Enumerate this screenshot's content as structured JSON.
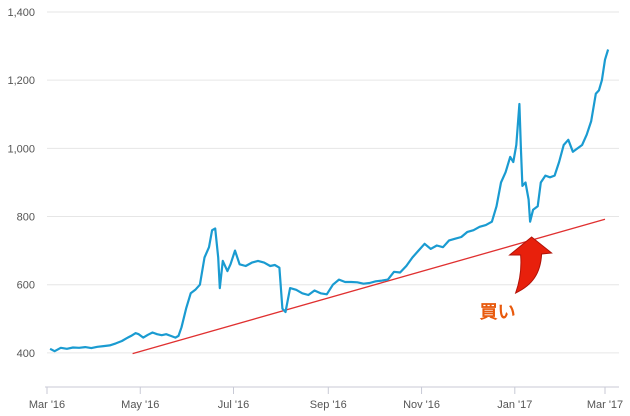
{
  "chart_data": {
    "type": "line",
    "grid": "horizontal",
    "ylim": [
      300,
      1400
    ],
    "y_ticks": [
      {
        "value": 400,
        "label": "400"
      },
      {
        "value": 600,
        "label": "600"
      },
      {
        "value": 800,
        "label": "800"
      },
      {
        "value": 1000,
        "label": "1,000"
      },
      {
        "value": 1200,
        "label": "1,200"
      },
      {
        "value": 1400,
        "label": "1,400"
      }
    ],
    "x_ticks": [
      {
        "date": "2016-03-01",
        "label": "Mar '16"
      },
      {
        "date": "2016-05-01",
        "label": "May '16"
      },
      {
        "date": "2016-07-01",
        "label": "Jul '16"
      },
      {
        "date": "2016-09-01",
        "label": "Sep '16"
      },
      {
        "date": "2016-11-01",
        "label": "Nov '16"
      },
      {
        "date": "2017-01-01",
        "label": "Jan '17"
      },
      {
        "date": "2017-03-01",
        "label": "Mar '17"
      }
    ],
    "series": [
      {
        "color": "#1a9bd1",
        "points": [
          [
            "2016-03-03",
            412
          ],
          [
            "2016-03-06",
            405
          ],
          [
            "2016-03-10",
            415
          ],
          [
            "2016-03-14",
            412
          ],
          [
            "2016-03-18",
            416
          ],
          [
            "2016-03-22",
            415
          ],
          [
            "2016-03-26",
            417
          ],
          [
            "2016-03-30",
            414
          ],
          [
            "2016-04-03",
            418
          ],
          [
            "2016-04-07",
            420
          ],
          [
            "2016-04-11",
            422
          ],
          [
            "2016-04-15",
            428
          ],
          [
            "2016-04-19",
            435
          ],
          [
            "2016-04-22",
            443
          ],
          [
            "2016-04-25",
            450
          ],
          [
            "2016-04-28",
            458
          ],
          [
            "2016-04-30",
            455
          ],
          [
            "2016-05-03",
            445
          ],
          [
            "2016-05-06",
            453
          ],
          [
            "2016-05-09",
            460
          ],
          [
            "2016-05-12",
            455
          ],
          [
            "2016-05-15",
            452
          ],
          [
            "2016-05-18",
            455
          ],
          [
            "2016-05-21",
            450
          ],
          [
            "2016-05-24",
            445
          ],
          [
            "2016-05-26",
            450
          ],
          [
            "2016-05-28",
            475
          ],
          [
            "2016-05-31",
            530
          ],
          [
            "2016-06-03",
            575
          ],
          [
            "2016-06-06",
            585
          ],
          [
            "2016-06-09",
            600
          ],
          [
            "2016-06-12",
            680
          ],
          [
            "2016-06-15",
            710
          ],
          [
            "2016-06-17",
            760
          ],
          [
            "2016-06-19",
            765
          ],
          [
            "2016-06-21",
            680
          ],
          [
            "2016-06-22",
            590
          ],
          [
            "2016-06-24",
            670
          ],
          [
            "2016-06-27",
            640
          ],
          [
            "2016-06-29",
            660
          ],
          [
            "2016-07-02",
            700
          ],
          [
            "2016-07-05",
            660
          ],
          [
            "2016-07-09",
            655
          ],
          [
            "2016-07-13",
            665
          ],
          [
            "2016-07-17",
            670
          ],
          [
            "2016-07-21",
            665
          ],
          [
            "2016-07-25",
            655
          ],
          [
            "2016-07-28",
            658
          ],
          [
            "2016-07-31",
            650
          ],
          [
            "2016-08-02",
            530
          ],
          [
            "2016-08-04",
            520
          ],
          [
            "2016-08-07",
            590
          ],
          [
            "2016-08-11",
            585
          ],
          [
            "2016-08-15",
            575
          ],
          [
            "2016-08-19",
            570
          ],
          [
            "2016-08-23",
            583
          ],
          [
            "2016-08-27",
            575
          ],
          [
            "2016-08-31",
            572
          ],
          [
            "2016-09-04",
            600
          ],
          [
            "2016-09-08",
            615
          ],
          [
            "2016-09-12",
            608
          ],
          [
            "2016-09-16",
            608
          ],
          [
            "2016-09-20",
            607
          ],
          [
            "2016-09-24",
            603
          ],
          [
            "2016-09-28",
            605
          ],
          [
            "2016-10-02",
            610
          ],
          [
            "2016-10-06",
            612
          ],
          [
            "2016-10-10",
            615
          ],
          [
            "2016-10-14",
            638
          ],
          [
            "2016-10-18",
            636
          ],
          [
            "2016-10-22",
            655
          ],
          [
            "2016-10-26",
            680
          ],
          [
            "2016-10-30",
            700
          ],
          [
            "2016-11-03",
            720
          ],
          [
            "2016-11-07",
            705
          ],
          [
            "2016-11-11",
            715
          ],
          [
            "2016-11-15",
            710
          ],
          [
            "2016-11-19",
            730
          ],
          [
            "2016-11-23",
            735
          ],
          [
            "2016-11-27",
            740
          ],
          [
            "2016-12-01",
            755
          ],
          [
            "2016-12-05",
            760
          ],
          [
            "2016-12-09",
            770
          ],
          [
            "2016-12-13",
            775
          ],
          [
            "2016-12-17",
            785
          ],
          [
            "2016-12-20",
            830
          ],
          [
            "2016-12-23",
            900
          ],
          [
            "2016-12-26",
            930
          ],
          [
            "2016-12-29",
            975
          ],
          [
            "2016-12-31",
            960
          ],
          [
            "2017-01-02",
            1010
          ],
          [
            "2017-01-04",
            1130
          ],
          [
            "2017-01-05",
            1000
          ],
          [
            "2017-01-06",
            890
          ],
          [
            "2017-01-08",
            900
          ],
          [
            "2017-01-10",
            850
          ],
          [
            "2017-01-11",
            785
          ],
          [
            "2017-01-13",
            820
          ],
          [
            "2017-01-16",
            830
          ],
          [
            "2017-01-18",
            900
          ],
          [
            "2017-01-21",
            920
          ],
          [
            "2017-01-24",
            915
          ],
          [
            "2017-01-27",
            920
          ],
          [
            "2017-01-30",
            960
          ],
          [
            "2017-02-02",
            1010
          ],
          [
            "2017-02-05",
            1025
          ],
          [
            "2017-02-08",
            990
          ],
          [
            "2017-02-11",
            1000
          ],
          [
            "2017-02-14",
            1010
          ],
          [
            "2017-02-17",
            1040
          ],
          [
            "2017-02-20",
            1080
          ],
          [
            "2017-02-23",
            1160
          ],
          [
            "2017-02-25",
            1170
          ],
          [
            "2017-02-27",
            1200
          ],
          [
            "2017-03-01",
            1260
          ],
          [
            "2017-03-03",
            1290
          ]
        ]
      }
    ],
    "trendline": {
      "color": "#e03030",
      "points": [
        [
          "2016-04-26",
          398
        ],
        [
          "2017-03-01",
          792
        ]
      ]
    },
    "annotation": {
      "text": "買い",
      "color": "#e8590c",
      "arrow_color": "#e8200c",
      "target": [
        "2017-01-12",
        740
      ]
    }
  }
}
